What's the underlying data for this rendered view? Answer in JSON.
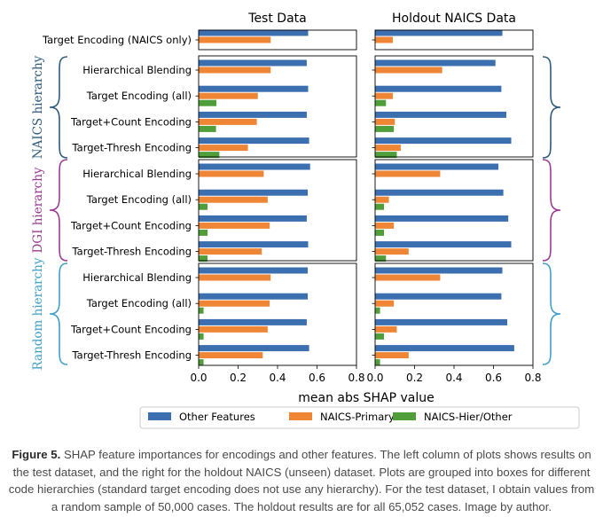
{
  "chart_data": {
    "type": "bar",
    "orientation": "horizontal",
    "xlabel": "mean abs SHAP value",
    "xlim": [
      0,
      0.8
    ],
    "xticks": [
      "0.0",
      "0.2",
      "0.4",
      "0.6",
      "0.8"
    ],
    "legend_position": "bottom",
    "series_names": [
      "Other Features",
      "NAICS-Primary",
      "NAICS-Hier/Other"
    ],
    "colors": {
      "Other Features": "#3b6fb0",
      "NAICS-Primary": "#ef8636",
      "NAICS-Hier/Other": "#4f9e3a",
      "NAICS hierarchy": "#2c5b7c",
      "DGI hierarchy": "#9a3a93",
      "Random hierarchy": "#3fa0c9"
    },
    "panel_titles": [
      "Test Data",
      "Holdout NAICS Data"
    ],
    "groups": [
      {
        "label": "",
        "rows": [
          {
            "category": "Target Encoding (NAICS only)",
            "test": [
              0.555,
              0.365,
              null
            ],
            "holdout": [
              0.645,
              0.09,
              null
            ]
          }
        ]
      },
      {
        "label": "NAICS hierarchy",
        "rows": [
          {
            "category": "Hierarchical Blending",
            "test": [
              0.548,
              0.365,
              null
            ],
            "holdout": [
              0.61,
              0.34,
              null
            ]
          },
          {
            "category": "Target Encoding (all)",
            "test": [
              0.555,
              0.3,
              0.09
            ],
            "holdout": [
              0.64,
              0.09,
              0.055
            ]
          },
          {
            "category": "Target+Count Encoding",
            "test": [
              0.548,
              0.295,
              0.088
            ],
            "holdout": [
              0.665,
              0.1,
              0.095
            ]
          },
          {
            "category": "Target-Thresh Encoding",
            "test": [
              0.56,
              0.25,
              0.105
            ],
            "holdout": [
              0.69,
              0.13,
              0.11
            ]
          }
        ]
      },
      {
        "label": "DGI hierarchy",
        "rows": [
          {
            "category": "Hierarchical Blending",
            "test": [
              0.565,
              0.33,
              null
            ],
            "holdout": [
              0.625,
              0.33,
              null
            ]
          },
          {
            "category": "Target Encoding (all)",
            "test": [
              0.553,
              0.35,
              0.045
            ],
            "holdout": [
              0.65,
              0.07,
              0.045
            ]
          },
          {
            "category": "Target+Count Encoding",
            "test": [
              0.548,
              0.36,
              0.045
            ],
            "holdout": [
              0.675,
              0.095,
              0.045
            ]
          },
          {
            "category": "Target-Thresh Encoding",
            "test": [
              0.555,
              0.32,
              0.045
            ],
            "holdout": [
              0.69,
              0.17,
              0.055
            ]
          }
        ]
      },
      {
        "label": "Random hierarchy",
        "rows": [
          {
            "category": "Hierarchical Blending",
            "test": [
              0.553,
              0.365,
              null
            ],
            "holdout": [
              0.645,
              0.33,
              null
            ]
          },
          {
            "category": "Target Encoding (all)",
            "test": [
              0.553,
              0.36,
              0.025
            ],
            "holdout": [
              0.64,
              0.095,
              0.025
            ]
          },
          {
            "category": "Target+Count Encoding",
            "test": [
              0.548,
              0.35,
              0.025
            ],
            "holdout": [
              0.67,
              0.11,
              0.045
            ]
          },
          {
            "category": "Target-Thresh Encoding",
            "test": [
              0.56,
              0.325,
              0.025
            ],
            "holdout": [
              0.705,
              0.17,
              0.025
            ]
          }
        ]
      }
    ]
  },
  "caption": {
    "label": "Figure 5.",
    "text": " SHAP feature importances for encodings and other features. The left column of plots shows results on the test dataset, and the right for the holdout NAICS (unseen) dataset. Plots are grouped into boxes for different code hierarchies (standard target encoding does not use any hierarchy). For the test dataset, I obtain values from a random sample of 50,000 cases. The holdout results are for all 65,052 cases. Image by author."
  }
}
